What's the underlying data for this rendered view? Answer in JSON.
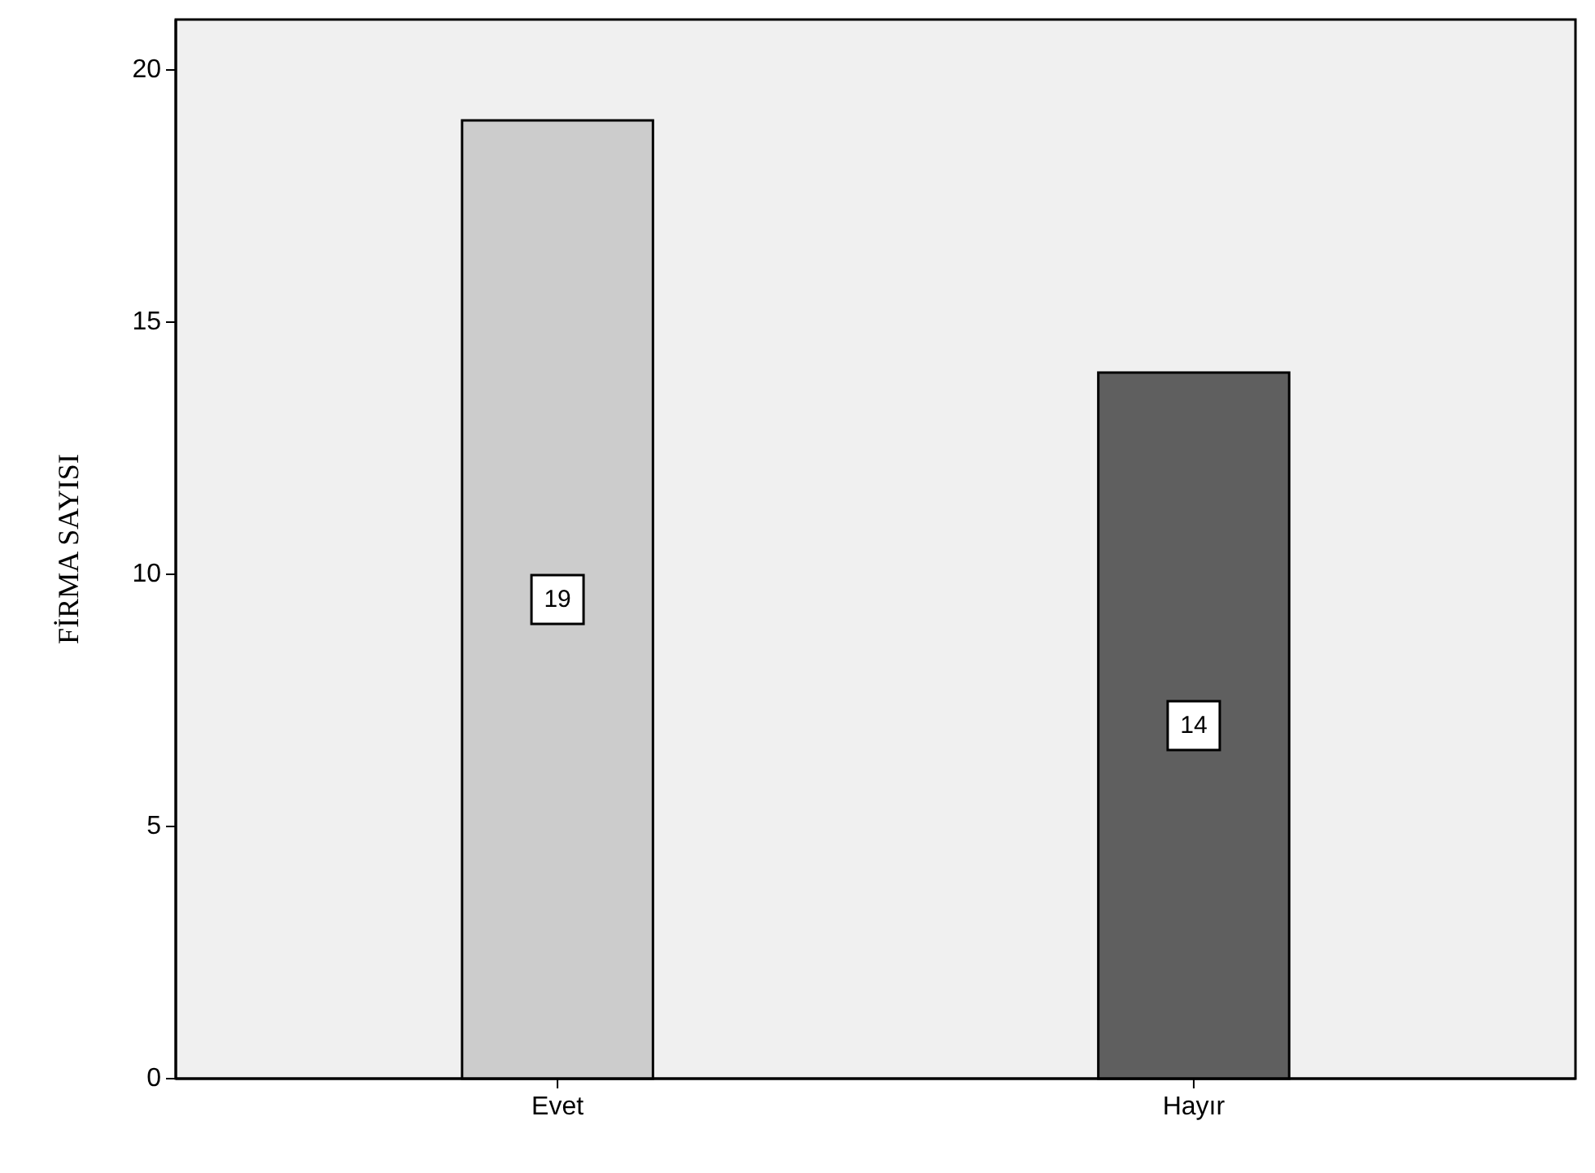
{
  "chart_data": {
    "type": "bar",
    "ylabel": "FİRMA SAYISI",
    "categories": [
      "Evet",
      "Hayır"
    ],
    "values": [
      19,
      14
    ],
    "colors": [
      "#cccccc",
      "#5f5f5f"
    ],
    "ylim": [
      0,
      21
    ],
    "yticks": [
      0,
      5,
      10,
      15,
      20
    ],
    "data_labels": true,
    "grid": false
  }
}
